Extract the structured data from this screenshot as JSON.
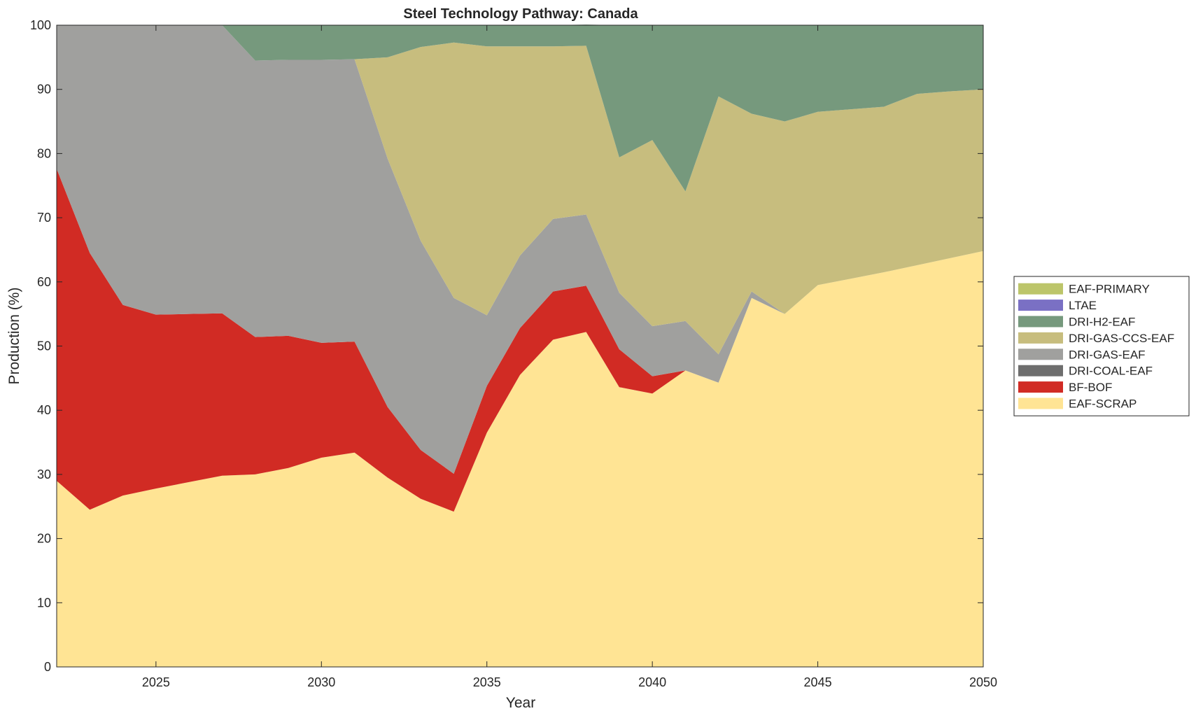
{
  "chart_data": {
    "type": "area",
    "stacked": true,
    "title": "Steel Technology Pathway: Canada",
    "xlabel": "Year",
    "ylabel": "Production (%)",
    "xlim": [
      2022,
      2050
    ],
    "ylim": [
      0,
      100
    ],
    "xticks": [
      2025,
      2030,
      2035,
      2040,
      2045,
      2050
    ],
    "yticks": [
      0,
      10,
      20,
      30,
      40,
      50,
      60,
      70,
      80,
      90,
      100
    ],
    "grid": false,
    "legend_position": "right",
    "x": [
      2022,
      2023,
      2024,
      2025,
      2026,
      2027,
      2028,
      2029,
      2030,
      2031,
      2032,
      2033,
      2034,
      2035,
      2036,
      2037,
      2038,
      2039,
      2040,
      2041,
      2042,
      2043,
      2044,
      2045,
      2046,
      2047,
      2048,
      2049,
      2050
    ],
    "series": [
      {
        "name": "EAF-SCRAP",
        "color": "#FFE494",
        "values": [
          29.0,
          24.5,
          26.7,
          27.8,
          28.8,
          29.8,
          30.0,
          31.0,
          32.6,
          33.4,
          29.5,
          26.2,
          24.2,
          36.5,
          45.5,
          51.0,
          52.2,
          43.6,
          42.6,
          46.2,
          44.3,
          57.5,
          55.0,
          59.5,
          60.5,
          61.5,
          62.6,
          63.7,
          64.8
        ]
      },
      {
        "name": "BF-BOF",
        "color": "#D12B24",
        "values": [
          48.6,
          40.0,
          29.7,
          27.1,
          26.2,
          25.3,
          21.4,
          20.6,
          17.9,
          17.3,
          11.0,
          7.6,
          5.9,
          7.3,
          7.3,
          7.5,
          7.2,
          5.9,
          2.7,
          0.0,
          0.0,
          0.0,
          0.0,
          0.0,
          0.0,
          0.0,
          0.0,
          0.0,
          0.0
        ]
      },
      {
        "name": "DRI-COAL-EAF",
        "color": "#6E6E6E",
        "values": [
          0,
          0,
          0,
          0,
          0,
          0,
          0,
          0,
          0,
          0,
          0,
          0,
          0,
          0,
          0,
          0,
          0,
          0,
          0,
          0,
          0,
          0,
          0,
          0,
          0,
          0,
          0,
          0,
          0
        ]
      },
      {
        "name": "DRI-GAS-EAF",
        "color": "#A0A09E",
        "values": [
          22.4,
          35.5,
          43.6,
          45.1,
          45.0,
          44.9,
          43.1,
          43.0,
          44.1,
          44.0,
          38.7,
          32.6,
          27.4,
          11.0,
          11.3,
          11.3,
          11.1,
          8.8,
          7.8,
          7.7,
          4.4,
          1.0,
          0.0,
          0.0,
          0.0,
          0.0,
          0.0,
          0.0,
          0.0
        ]
      },
      {
        "name": "DRI-GAS-CCS-EAF",
        "color": "#C7BD7E",
        "values": [
          0,
          0,
          0,
          0,
          0,
          0,
          0,
          0,
          0,
          0,
          15.8,
          30.2,
          39.8,
          41.9,
          32.6,
          26.9,
          26.3,
          21.1,
          29.0,
          20.2,
          40.2,
          27.7,
          30.0,
          27.0,
          26.4,
          25.8,
          26.7,
          26.0,
          25.2
        ]
      },
      {
        "name": "DRI-H2-EAF",
        "color": "#76997D",
        "values": [
          0.0,
          0.0,
          0.0,
          0.0,
          0.0,
          0.0,
          5.5,
          5.4,
          5.4,
          5.3,
          5.0,
          3.4,
          2.7,
          3.3,
          3.3,
          3.3,
          3.3,
          20.6,
          17.9,
          25.9,
          11.1,
          13.8,
          15.0,
          13.5,
          13.1,
          12.7,
          10.7,
          10.3,
          10.0
        ]
      },
      {
        "name": "LTAE",
        "color": "#7A70C4",
        "values": [
          0,
          0,
          0,
          0,
          0,
          0,
          0,
          0,
          0,
          0,
          0,
          0,
          0,
          0,
          0,
          0,
          0,
          0,
          0,
          0,
          0,
          0,
          0,
          0,
          0,
          0,
          0,
          0,
          0
        ]
      },
      {
        "name": "EAF-PRIMARY",
        "color": "#BCC56A",
        "values": [
          0,
          0,
          0,
          0,
          0,
          0,
          0,
          0,
          0,
          0,
          0,
          0,
          0,
          0,
          0,
          0,
          0,
          0,
          0,
          0,
          0,
          0,
          0,
          0,
          0,
          0,
          0,
          0,
          0
        ]
      }
    ],
    "legend_order": [
      "EAF-PRIMARY",
      "LTAE",
      "DRI-H2-EAF",
      "DRI-GAS-CCS-EAF",
      "DRI-GAS-EAF",
      "DRI-COAL-EAF",
      "BF-BOF",
      "EAF-SCRAP"
    ]
  }
}
